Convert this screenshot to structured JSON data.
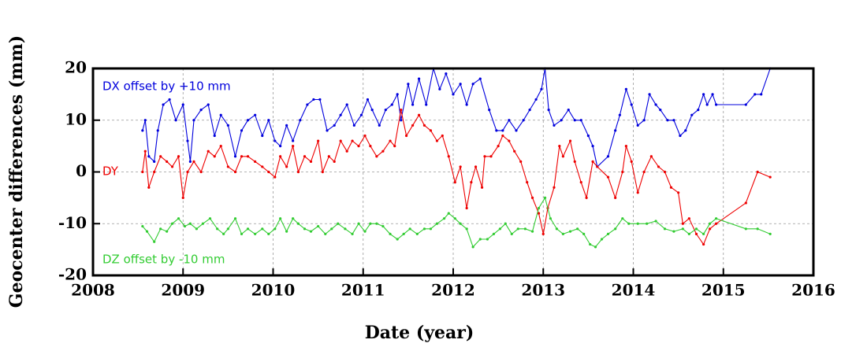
{
  "chart_data": {
    "type": "line",
    "x_label": "Date (year)",
    "y_label": "Geocenter differences (mm)",
    "xlim": [
      2008,
      2016
    ],
    "xticks": [
      2008,
      2009,
      2010,
      2011,
      2012,
      2013,
      2014,
      2015,
      2016
    ],
    "ylim": [
      -20,
      20
    ],
    "yticks": [
      -20,
      -10,
      0,
      10,
      20
    ],
    "grid": true,
    "annotations": [
      {
        "text": "DX offset by +10 mm",
        "color": "#0000dd"
      },
      {
        "text": "DY",
        "color": "#ee0000"
      },
      {
        "text": "DZ offset by -10 mm",
        "color": "#33cc33"
      }
    ],
    "series": [
      {
        "name": "DX",
        "color": "#0000dd",
        "x": [
          2008.55,
          2008.58,
          2008.62,
          2008.68,
          2008.72,
          2008.78,
          2008.85,
          2008.92,
          2009.0,
          2009.05,
          2009.08,
          2009.12,
          2009.2,
          2009.28,
          2009.35,
          2009.42,
          2009.5,
          2009.58,
          2009.65,
          2009.72,
          2009.8,
          2009.88,
          2009.95,
          2010.02,
          2010.08,
          2010.15,
          2010.22,
          2010.3,
          2010.38,
          2010.45,
          2010.52,
          2010.6,
          2010.68,
          2010.75,
          2010.82,
          2010.9,
          2010.98,
          2011.05,
          2011.1,
          2011.18,
          2011.25,
          2011.32,
          2011.38,
          2011.42,
          2011.5,
          2011.55,
          2011.62,
          2011.7,
          2011.78,
          2011.85,
          2011.92,
          2012.0,
          2012.08,
          2012.15,
          2012.22,
          2012.3,
          2012.4,
          2012.48,
          2012.55,
          2012.62,
          2012.7,
          2012.78,
          2012.85,
          2012.92,
          2012.98,
          2013.02,
          2013.06,
          2013.12,
          2013.2,
          2013.28,
          2013.35,
          2013.42,
          2013.5,
          2013.55,
          2013.6,
          2013.72,
          2013.8,
          2013.85,
          2013.92,
          2013.98,
          2014.05,
          2014.12,
          2014.18,
          2014.25,
          2014.3,
          2014.38,
          2014.45,
          2014.52,
          2014.58,
          2014.65,
          2014.72,
          2014.78,
          2014.82,
          2014.88,
          2014.92,
          2015.25,
          2015.35,
          2015.42,
          2015.52
        ],
        "values": [
          8,
          10,
          3,
          2,
          8,
          13,
          14,
          10,
          13,
          6,
          2,
          10,
          12,
          13,
          7,
          11,
          9,
          3,
          8,
          10,
          11,
          7,
          10,
          6,
          5,
          9,
          6,
          10,
          13,
          14,
          14,
          8,
          9,
          11,
          13,
          9,
          11,
          14,
          12,
          9,
          12,
          13,
          15,
          10,
          17,
          13,
          18,
          13,
          20,
          16,
          19,
          15,
          17,
          13,
          17,
          18,
          12,
          8,
          8,
          10,
          8,
          10,
          12,
          14,
          16,
          20,
          12,
          9,
          10,
          12,
          10,
          10,
          7,
          5,
          1,
          3,
          8,
          11,
          16,
          13,
          9,
          10,
          15,
          13,
          12,
          10,
          10,
          7,
          8,
          11,
          12,
          15,
          13,
          15,
          13,
          13,
          15,
          15,
          20
        ]
      },
      {
        "name": "DY",
        "color": "#ee0000",
        "x": [
          2008.55,
          2008.58,
          2008.62,
          2008.68,
          2008.75,
          2008.82,
          2008.88,
          2008.95,
          2009.0,
          2009.05,
          2009.12,
          2009.2,
          2009.28,
          2009.35,
          2009.42,
          2009.5,
          2009.58,
          2009.65,
          2009.72,
          2009.8,
          2009.88,
          2009.95,
          2010.02,
          2010.08,
          2010.15,
          2010.22,
          2010.28,
          2010.35,
          2010.42,
          2010.5,
          2010.55,
          2010.62,
          2010.68,
          2010.75,
          2010.82,
          2010.88,
          2010.95,
          2011.02,
          2011.08,
          2011.15,
          2011.22,
          2011.3,
          2011.35,
          2011.42,
          2011.48,
          2011.55,
          2011.62,
          2011.68,
          2011.75,
          2011.82,
          2011.88,
          2011.95,
          2012.02,
          2012.08,
          2012.15,
          2012.2,
          2012.25,
          2012.32,
          2012.35,
          2012.42,
          2012.5,
          2012.55,
          2012.62,
          2012.68,
          2012.75,
          2012.82,
          2012.88,
          2012.95,
          2013.0,
          2013.05,
          2013.12,
          2013.18,
          2013.22,
          2013.3,
          2013.35,
          2013.42,
          2013.48,
          2013.55,
          2013.6,
          2013.72,
          2013.8,
          2013.88,
          2013.92,
          2013.98,
          2014.05,
          2014.12,
          2014.2,
          2014.28,
          2014.35,
          2014.42,
          2014.5,
          2014.55,
          2014.62,
          2014.7,
          2014.78,
          2014.85,
          2014.92,
          2015.25,
          2015.38,
          2015.52
        ],
        "values": [
          0,
          4,
          -3,
          0,
          3,
          2,
          1,
          3,
          -5,
          0,
          2,
          0,
          4,
          3,
          5,
          1,
          0,
          3,
          3,
          2,
          1,
          0,
          -1,
          3,
          1,
          5,
          0,
          3,
          2,
          6,
          0,
          3,
          2,
          6,
          4,
          6,
          5,
          7,
          5,
          3,
          4,
          6,
          5,
          12,
          7,
          9,
          11,
          9,
          8,
          6,
          7,
          3,
          -2,
          1,
          -7,
          -2,
          1,
          -3,
          3,
          3,
          5,
          7,
          6,
          4,
          2,
          -2,
          -5,
          -8,
          -12,
          -7,
          -3,
          5,
          3,
          6,
          2,
          -2,
          -5,
          2,
          1,
          -1,
          -5,
          0,
          5,
          2,
          -4,
          0,
          3,
          1,
          0,
          -3,
          -4,
          -10,
          -9,
          -12,
          -14,
          -11,
          -10,
          -6,
          0,
          -1
        ]
      },
      {
        "name": "DZ",
        "color": "#33cc33",
        "x": [
          2008.55,
          2008.6,
          2008.68,
          2008.75,
          2008.82,
          2008.88,
          2008.95,
          2009.02,
          2009.08,
          2009.15,
          2009.22,
          2009.3,
          2009.38,
          2009.45,
          2009.5,
          2009.58,
          2009.65,
          2009.72,
          2009.8,
          2009.88,
          2009.95,
          2010.02,
          2010.08,
          2010.15,
          2010.22,
          2010.28,
          2010.35,
          2010.42,
          2010.5,
          2010.58,
          2010.65,
          2010.72,
          2010.8,
          2010.88,
          2010.95,
          2011.02,
          2011.08,
          2011.15,
          2011.22,
          2011.3,
          2011.38,
          2011.45,
          2011.52,
          2011.6,
          2011.68,
          2011.75,
          2011.82,
          2011.9,
          2011.95,
          2012.02,
          2012.08,
          2012.15,
          2012.22,
          2012.3,
          2012.38,
          2012.45,
          2012.52,
          2012.58,
          2012.65,
          2012.72,
          2012.8,
          2012.88,
          2012.95,
          2013.02,
          2013.08,
          2013.15,
          2013.22,
          2013.3,
          2013.38,
          2013.45,
          2013.52,
          2013.58,
          2013.65,
          2013.72,
          2013.8,
          2013.88,
          2013.95,
          2014.05,
          2014.15,
          2014.25,
          2014.35,
          2014.45,
          2014.55,
          2014.62,
          2014.7,
          2014.78,
          2014.85,
          2014.92,
          2015.25,
          2015.38,
          2015.52
        ],
        "values": [
          -10.5,
          -11.5,
          -13.5,
          -11,
          -11.5,
          -10,
          -9,
          -10.5,
          -10,
          -11,
          -10,
          -9,
          -11,
          -12,
          -11,
          -9,
          -12,
          -11,
          -12,
          -11,
          -12,
          -11,
          -9,
          -11.5,
          -9,
          -10,
          -11,
          -11.5,
          -10.5,
          -12,
          -11,
          -10,
          -11,
          -12,
          -10,
          -11.5,
          -10,
          -10,
          -10.5,
          -12,
          -13,
          -12,
          -11,
          -12,
          -11,
          -11,
          -10,
          -9,
          -8,
          -9,
          -10,
          -11,
          -14.5,
          -13,
          -13,
          -12,
          -11,
          -10,
          -12,
          -11,
          -11,
          -11.5,
          -7,
          -5,
          -9,
          -11,
          -12,
          -11.5,
          -11,
          -12,
          -14,
          -14.5,
          -13,
          -12,
          -11,
          -9,
          -10,
          -10,
          -10,
          -9.5,
          -11,
          -11.5,
          -11,
          -12,
          -11,
          -12,
          -10,
          -9,
          -11,
          -11,
          -12
        ]
      }
    ]
  }
}
